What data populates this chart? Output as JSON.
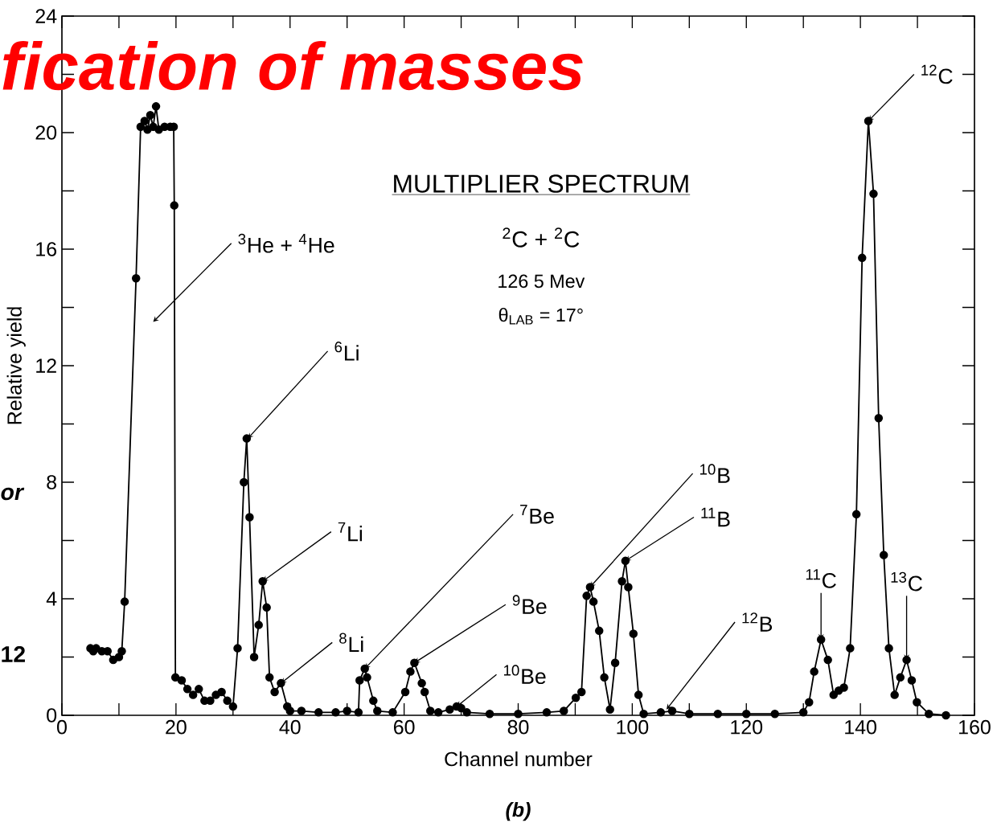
{
  "chart_data": {
    "type": "line",
    "title": "MULTIPLIER SPECTRUM",
    "xlabel": "Channel number",
    "ylabel": "Relative yield",
    "xlim": [
      0,
      160
    ],
    "ylim": [
      0,
      24
    ],
    "xticks": [
      0,
      {
        "value": 10,
        "label": null
      },
      20,
      {
        "value": 30,
        "label": null
      },
      40,
      {
        "value": 50,
        "label": null
      },
      60,
      {
        "value": 70,
        "label": null
      },
      80,
      {
        "value": 90,
        "label": null
      },
      100,
      {
        "value": 110,
        "label": null
      },
      120,
      {
        "value": 130,
        "label": null
      },
      140,
      {
        "value": 150,
        "label": null
      },
      160
    ],
    "yticks": [
      0,
      {
        "value": 2,
        "label": null
      },
      4,
      {
        "value": 6,
        "label": null
      },
      8,
      {
        "value": 10,
        "label": null
      },
      12,
      {
        "value": 14,
        "label": null
      },
      16,
      {
        "value": 18,
        "label": null
      },
      20,
      {
        "value": 22,
        "label": null
      },
      24
    ],
    "marker": "circle",
    "line_style": "solid",
    "series": [
      {
        "color": "#000000",
        "x": [
          5,
          5.5,
          6,
          7,
          8,
          9,
          10,
          10.5,
          11,
          13,
          13.8,
          14.5,
          15,
          15.5,
          16,
          16.5,
          17,
          18,
          19,
          19.6,
          19.7,
          19.9,
          21,
          22,
          23,
          24,
          25,
          26,
          27,
          28,
          29,
          30,
          30.8,
          31.9,
          32.4,
          32.9,
          33.7,
          34.5,
          35.2,
          35.9,
          36.4,
          37.3,
          38.4,
          39.5,
          40,
          42,
          45,
          48,
          50,
          52,
          52.2,
          53.1,
          53.5,
          54.6,
          55.3,
          58,
          60.2,
          61.1,
          61.8,
          63.1,
          63.6,
          64.6,
          66,
          68,
          69.2,
          70,
          71,
          75,
          80,
          85,
          88,
          90.1,
          91.1,
          92.0,
          92.6,
          93.2,
          94.2,
          95.1,
          96.1,
          97.0,
          98.2,
          98.8,
          99.3,
          100.2,
          101.1,
          102,
          105,
          107,
          110,
          115,
          120,
          125,
          130,
          131,
          131.9,
          133.1,
          134.3,
          135.3,
          136.2,
          137.1,
          138.2,
          139.3,
          140.3,
          141.4,
          142.3,
          143.2,
          144.1,
          145,
          146,
          147,
          148.1,
          149,
          149.9,
          152,
          155
        ],
        "values": [
          2.3,
          2.2,
          2.3,
          2.2,
          2.2,
          1.9,
          2.0,
          2.2,
          3.9,
          15.0,
          20.2,
          20.4,
          20.1,
          20.6,
          20.2,
          20.9,
          20.1,
          20.2,
          20.2,
          20.2,
          17.5,
          1.3,
          1.2,
          0.9,
          0.7,
          0.9,
          0.5,
          0.5,
          0.7,
          0.8,
          0.5,
          0.3,
          2.3,
          8.0,
          9.5,
          6.8,
          2.0,
          3.1,
          4.6,
          3.7,
          1.3,
          0.8,
          1.1,
          0.3,
          0.15,
          0.15,
          0.1,
          0.1,
          0.15,
          0.1,
          1.2,
          1.6,
          1.3,
          0.5,
          0.15,
          0.1,
          0.8,
          1.5,
          1.8,
          1.1,
          0.8,
          0.15,
          0.1,
          0.2,
          0.3,
          0.25,
          0.1,
          0.05,
          0.05,
          0.1,
          0.15,
          0.6,
          0.8,
          4.1,
          4.4,
          3.9,
          2.9,
          1.3,
          0.2,
          1.8,
          4.6,
          5.3,
          4.4,
          2.8,
          0.7,
          0.05,
          0.1,
          0.15,
          0.05,
          0.05,
          0.05,
          0.05,
          0.1,
          0.45,
          1.5,
          2.6,
          1.9,
          0.7,
          0.85,
          0.95,
          2.3,
          6.9,
          15.7,
          20.4,
          17.9,
          10.2,
          5.5,
          2.3,
          0.7,
          1.3,
          1.9,
          1.2,
          0.45,
          0.05,
          0
        ]
      }
    ],
    "annotations": [
      "$^{3}$He + $^{4}$He",
      {
        "text": "$^{6}$Li",
        "x": 32.6,
        "y": 9.5
      },
      {
        "text": "$^{7}$Li",
        "x": 35.2,
        "y": 4.6
      },
      {
        "text": "$^{8}$Li",
        "x": 38.4,
        "y": 1.1
      },
      {
        "text": "$^{7}$Be",
        "x": 53.1,
        "y": 1.6
      },
      {
        "text": "$^{9}$Be",
        "x": 61.8,
        "y": 1.8
      },
      {
        "text": "$^{10}$Be",
        "x": 69.2,
        "y": 0.3
      },
      {
        "text": "$^{10}$B",
        "x": 92.6,
        "y": 4.4
      },
      {
        "text": "$^{11}$B",
        "x": 98.8,
        "y": 5.3
      },
      {
        "text": "$^{12}$B",
        "x": 106,
        "y": 0.2
      },
      {
        "text": "$^{11}$C",
        "x": 133.1,
        "y": 2.6
      },
      {
        "text": "$^{12}$C",
        "x": 141.4,
        "y": 20.4
      },
      {
        "text": "$^{13}$C",
        "x": 148.1,
        "y": 1.9
      },
      "$^{2}$C + $^{2}$C",
      "126 5 Mev",
      "θ$_{LAB}$ = 17°",
      "(b)",
      "fication of masses",
      "or",
      "12"
    ]
  }
}
